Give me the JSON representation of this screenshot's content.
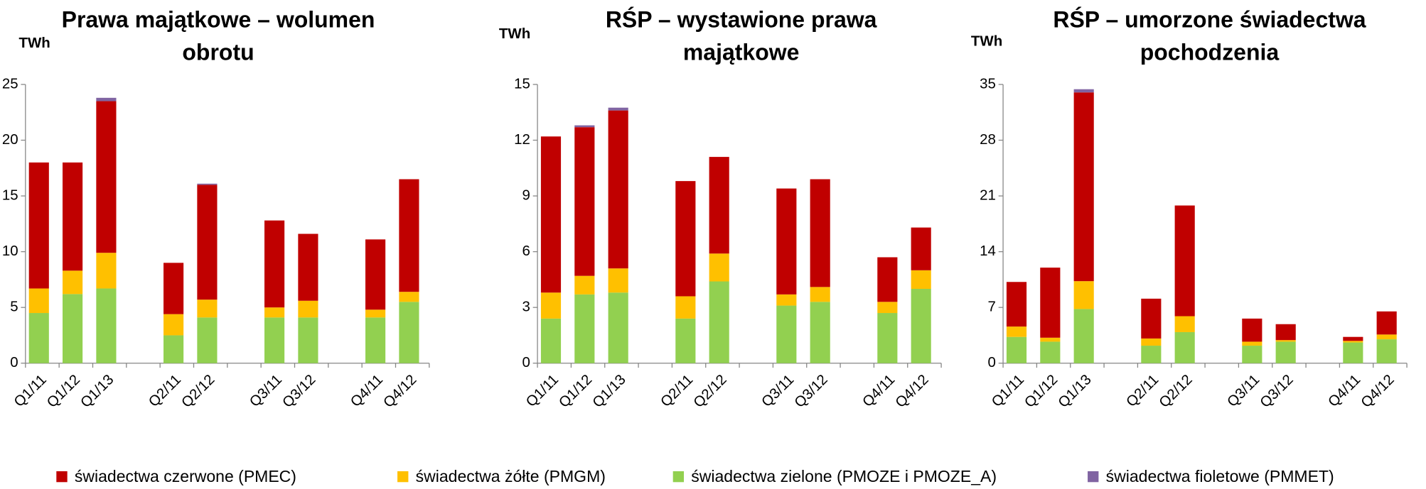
{
  "chart_data": [
    {
      "type": "bar",
      "title": "Prawa majątkowe – wolumen obrotu",
      "y_label": "TWh",
      "categories": [
        "Q1/11",
        "Q1/12",
        "Q1/13",
        null,
        "Q2/11",
        "Q2/12",
        null,
        "Q3/11",
        "Q3/12",
        null,
        "Q4/11",
        "Q4/12"
      ],
      "series": [
        {
          "name": "świadectwa czerwone (PMEC)",
          "color": "#c00000",
          "values": [
            11.3,
            9.7,
            13.6,
            null,
            4.6,
            10.3,
            null,
            7.8,
            6.0,
            null,
            6.3,
            10.1
          ]
        },
        {
          "name": "świadectwa żółte (PMGM)",
          "color": "#ffc000",
          "values": [
            2.2,
            2.1,
            3.2,
            null,
            1.9,
            1.6,
            null,
            0.9,
            1.5,
            null,
            0.7,
            0.9
          ]
        },
        {
          "name": "świadectwa zielone (PMOZE i PMOZE_A)",
          "color": "#92d050",
          "values": [
            4.5,
            6.2,
            6.7,
            null,
            2.5,
            4.1,
            null,
            4.1,
            4.1,
            null,
            4.1,
            5.5
          ]
        },
        {
          "name": "świadectwa fioletowe (PMMET)",
          "color": "#8064a2",
          "values": [
            0,
            0,
            0.3,
            null,
            0,
            0.1,
            null,
            0,
            0,
            null,
            0,
            0
          ]
        }
      ],
      "ylim": [
        0,
        25
      ],
      "yticks": [
        0,
        5,
        10,
        15,
        20,
        25
      ],
      "stacked": true
    },
    {
      "type": "bar",
      "title": "RŚP  – wystawione prawa majątkowe",
      "y_label": "TWh",
      "categories": [
        "Q1/11",
        "Q1/12",
        "Q1/13",
        null,
        "Q2/11",
        "Q2/12",
        null,
        "Q3/11",
        "Q3/12",
        null,
        "Q4/11",
        "Q4/12"
      ],
      "series": [
        {
          "name": "świadectwa czerwone (PMEC)",
          "color": "#c00000",
          "values": [
            8.4,
            8.0,
            8.5,
            null,
            6.2,
            5.2,
            null,
            5.7,
            5.8,
            null,
            2.4,
            2.3
          ]
        },
        {
          "name": "świadectwa żółte (PMGM)",
          "color": "#ffc000",
          "values": [
            1.4,
            1.0,
            1.3,
            null,
            1.2,
            1.5,
            null,
            0.6,
            0.8,
            null,
            0.6,
            1.0
          ]
        },
        {
          "name": "świadectwa zielone (PMOZE i PMOZE_A)",
          "color": "#92d050",
          "values": [
            2.4,
            3.7,
            3.8,
            null,
            2.4,
            4.4,
            null,
            3.1,
            3.3,
            null,
            2.7,
            4.0
          ]
        },
        {
          "name": "świadectwa fioletowe (PMMET)",
          "color": "#8064a2",
          "values": [
            0,
            0.1,
            0.15,
            null,
            0,
            0,
            null,
            0,
            0,
            null,
            0,
            0
          ]
        }
      ],
      "ylim": [
        0,
        15
      ],
      "yticks": [
        0,
        3,
        6,
        9,
        12,
        15
      ],
      "stacked": true
    },
    {
      "type": "bar",
      "title": "RŚP – umorzone świadectwa pochodzenia",
      "y_label": "TWh",
      "categories": [
        "Q1/11",
        "Q1/12",
        "Q1/13",
        null,
        "Q2/11",
        "Q2/12",
        null,
        "Q3/11",
        "Q3/12",
        null,
        "Q4/11",
        "Q4/12"
      ],
      "series": [
        {
          "name": "świadectwa czerwone (PMEC)",
          "color": "#c00000",
          "values": [
            5.6,
            8.8,
            23.7,
            null,
            5.0,
            13.9,
            null,
            2.9,
            2.0,
            null,
            0.5,
            2.9
          ]
        },
        {
          "name": "świadectwa żółte (PMGM)",
          "color": "#ffc000",
          "values": [
            1.3,
            0.5,
            3.5,
            null,
            0.9,
            2.0,
            null,
            0.5,
            0.2,
            null,
            0.2,
            0.6
          ]
        },
        {
          "name": "świadectwa zielone (PMOZE i PMOZE_A)",
          "color": "#92d050",
          "values": [
            3.3,
            2.7,
            6.8,
            null,
            2.2,
            3.9,
            null,
            2.2,
            2.7,
            null,
            2.6,
            3.0
          ]
        },
        {
          "name": "świadectwa fioletowe (PMMET)",
          "color": "#8064a2",
          "values": [
            0,
            0,
            0.4,
            null,
            0,
            0,
            null,
            0,
            0,
            null,
            0,
            0
          ]
        }
      ],
      "ylim": [
        0,
        35
      ],
      "yticks": [
        0,
        7,
        14,
        21,
        28,
        35
      ],
      "stacked": true
    }
  ]
}
